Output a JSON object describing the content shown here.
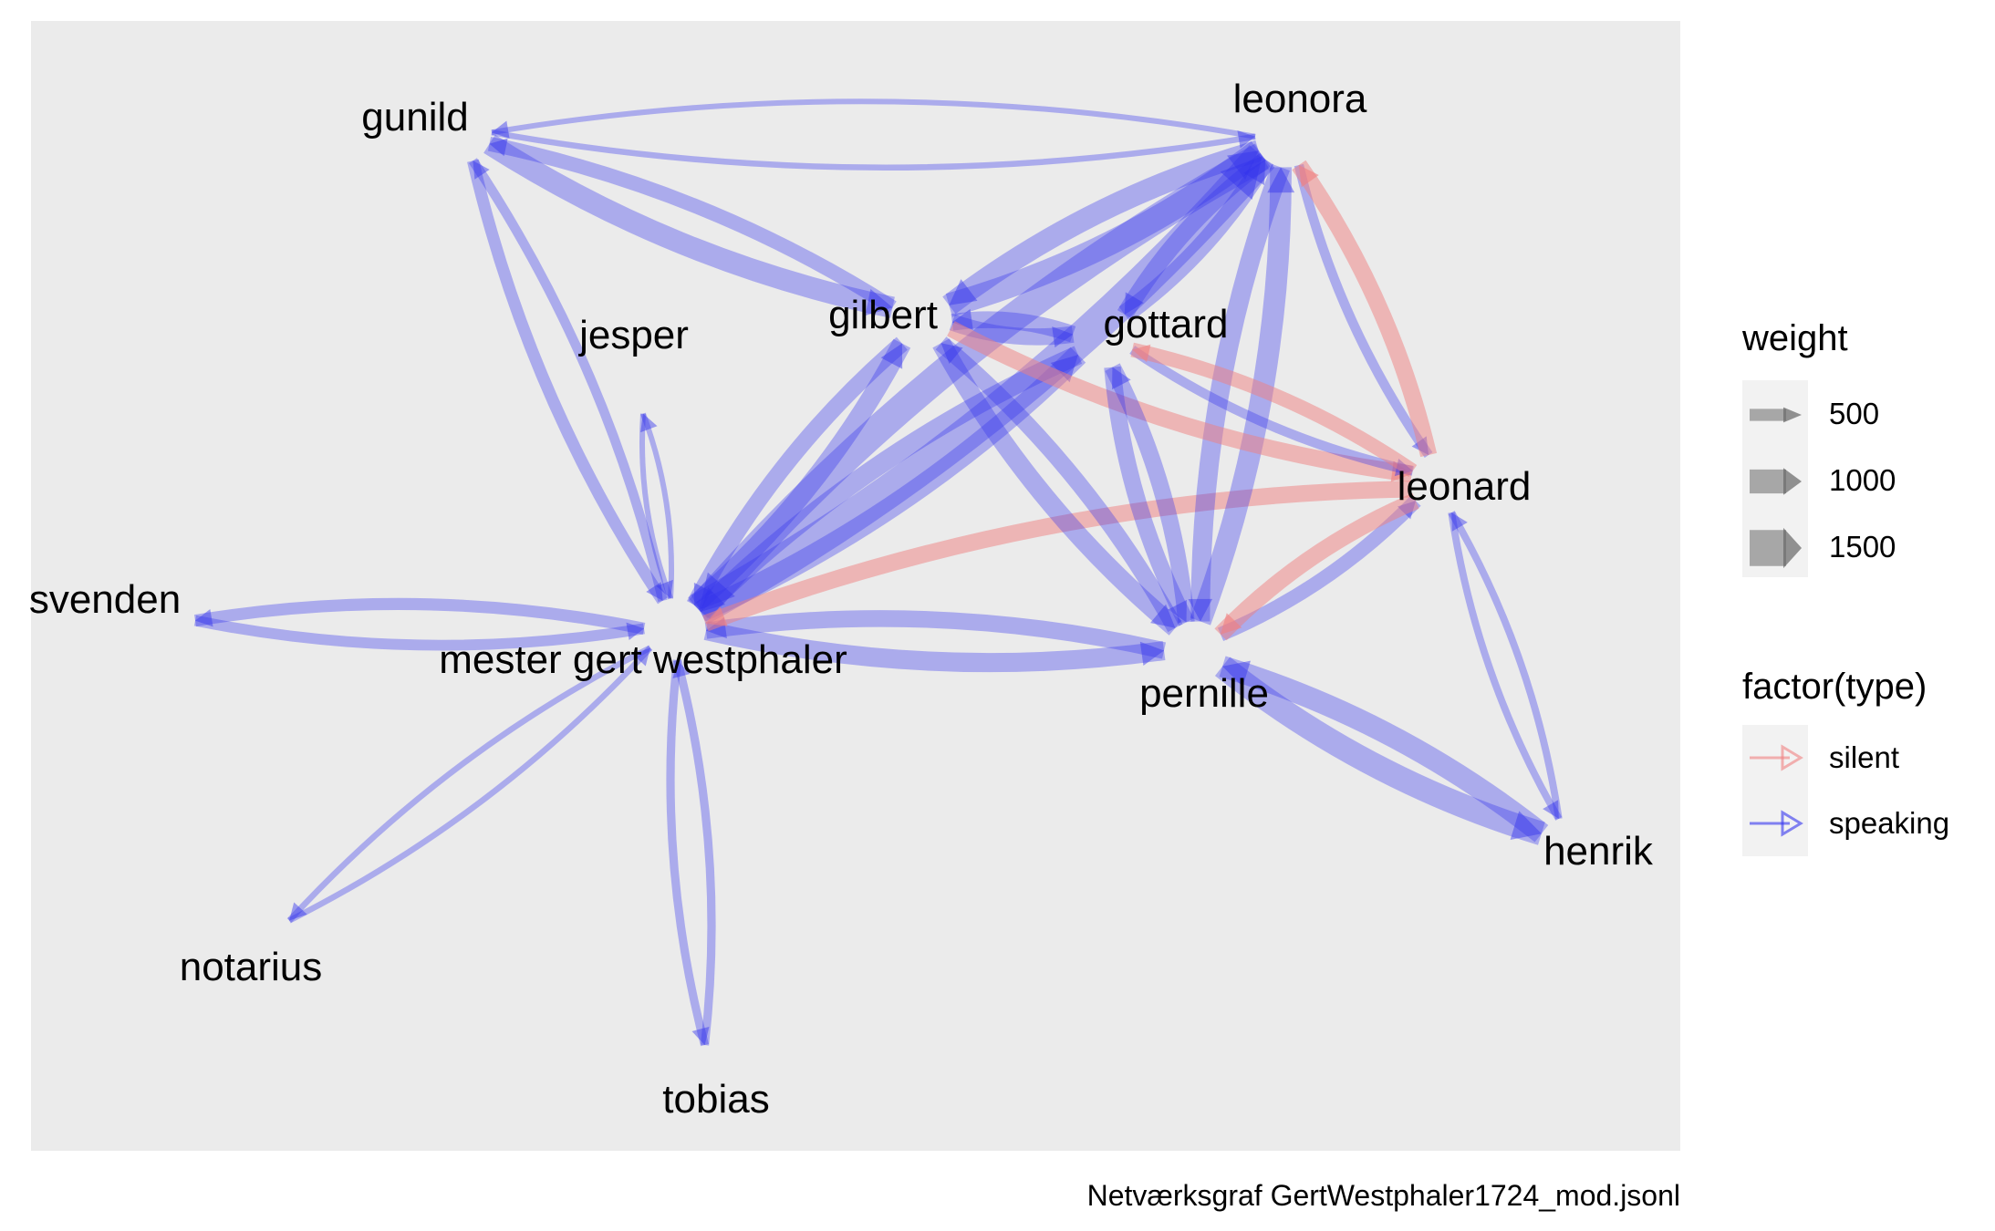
{
  "caption": "Netværksgraf GertWestphaler1724_mod.jsonl",
  "colors": {
    "panel": "#EBEBEB",
    "silent": "#F08080",
    "speaking": "#3333EE",
    "legend_key": "#F2F2F2"
  },
  "legend": {
    "weight_title": "weight",
    "weight_items": [
      {
        "label": "500",
        "value": 500
      },
      {
        "label": "1000",
        "value": 1000
      },
      {
        "label": "1500",
        "value": 1500
      }
    ],
    "type_title": "factor(type)",
    "type_items": [
      {
        "label": "silent",
        "key": "silent"
      },
      {
        "label": "speaking",
        "key": "speaking"
      }
    ]
  },
  "nodes": [
    {
      "id": "leonora",
      "label": "leonora"
    },
    {
      "id": "gunild",
      "label": "gunild"
    },
    {
      "id": "gilbert",
      "label": "gilbert"
    },
    {
      "id": "gottard",
      "label": "gottard"
    },
    {
      "id": "jesper",
      "label": "jesper"
    },
    {
      "id": "leonard",
      "label": "leonard"
    },
    {
      "id": "svenden",
      "label": "svenden"
    },
    {
      "id": "mester_gert",
      "label": "mester gert westphaler"
    },
    {
      "id": "pernille",
      "label": "pernille"
    },
    {
      "id": "henrik",
      "label": "henrik"
    },
    {
      "id": "notarius",
      "label": "notarius"
    },
    {
      "id": "tobias",
      "label": "tobias"
    }
  ],
  "edges": [
    {
      "from": "leonora",
      "to": "gunild",
      "type": "speaking",
      "weight": 200
    },
    {
      "from": "gunild",
      "to": "leonora",
      "type": "speaking",
      "weight": 250
    },
    {
      "from": "gunild",
      "to": "gilbert",
      "type": "speaking",
      "weight": 900
    },
    {
      "from": "gilbert",
      "to": "gunild",
      "type": "speaking",
      "weight": 600
    },
    {
      "from": "gunild",
      "to": "mester_gert",
      "type": "speaking",
      "weight": 500
    },
    {
      "from": "mester_gert",
      "to": "gunild",
      "type": "speaking",
      "weight": 400
    },
    {
      "from": "jesper",
      "to": "mester_gert",
      "type": "speaking",
      "weight": 150
    },
    {
      "from": "mester_gert",
      "to": "jesper",
      "type": "speaking",
      "weight": 150
    },
    {
      "from": "svenden",
      "to": "mester_gert",
      "type": "speaking",
      "weight": 450
    },
    {
      "from": "mester_gert",
      "to": "svenden",
      "type": "speaking",
      "weight": 500
    },
    {
      "from": "notarius",
      "to": "mester_gert",
      "type": "speaking",
      "weight": 250
    },
    {
      "from": "mester_gert",
      "to": "notarius",
      "type": "speaking",
      "weight": 250
    },
    {
      "from": "tobias",
      "to": "mester_gert",
      "type": "speaking",
      "weight": 350
    },
    {
      "from": "mester_gert",
      "to": "tobias",
      "type": "speaking",
      "weight": 350
    },
    {
      "from": "leonora",
      "to": "mester_gert",
      "type": "speaking",
      "weight": 1200
    },
    {
      "from": "mester_gert",
      "to": "leonora",
      "type": "speaking",
      "weight": 1400
    },
    {
      "from": "gilbert",
      "to": "mester_gert",
      "type": "speaking",
      "weight": 700
    },
    {
      "from": "mester_gert",
      "to": "gilbert",
      "type": "speaking",
      "weight": 800
    },
    {
      "from": "gottard",
      "to": "mester_gert",
      "type": "speaking",
      "weight": 800
    },
    {
      "from": "mester_gert",
      "to": "gottard",
      "type": "speaking",
      "weight": 900
    },
    {
      "from": "mester_gert",
      "to": "pernille",
      "type": "speaking",
      "weight": 800
    },
    {
      "from": "pernille",
      "to": "mester_gert",
      "type": "speaking",
      "weight": 700
    },
    {
      "from": "leonard",
      "to": "mester_gert",
      "type": "silent",
      "weight": 700
    },
    {
      "from": "leonora",
      "to": "gilbert",
      "type": "speaking",
      "weight": 900
    },
    {
      "from": "gilbert",
      "to": "leonora",
      "type": "speaking",
      "weight": 1000
    },
    {
      "from": "leonora",
      "to": "gottard",
      "type": "speaking",
      "weight": 700
    },
    {
      "from": "gottard",
      "to": "leonora",
      "type": "speaking",
      "weight": 800
    },
    {
      "from": "leonora",
      "to": "pernille",
      "type": "speaking",
      "weight": 800
    },
    {
      "from": "pernille",
      "to": "leonora",
      "type": "speaking",
      "weight": 900
    },
    {
      "from": "leonora",
      "to": "leonard",
      "type": "speaking",
      "weight": 400
    },
    {
      "from": "leonard",
      "to": "leonora",
      "type": "silent",
      "weight": 700
    },
    {
      "from": "gilbert",
      "to": "gottard",
      "type": "speaking",
      "weight": 700
    },
    {
      "from": "gottard",
      "to": "gilbert",
      "type": "speaking",
      "weight": 700
    },
    {
      "from": "gilbert",
      "to": "leonard",
      "type": "silent",
      "weight": 700
    },
    {
      "from": "gilbert",
      "to": "pernille",
      "type": "speaking",
      "weight": 800
    },
    {
      "from": "pernille",
      "to": "gilbert",
      "type": "speaking",
      "weight": 700
    },
    {
      "from": "gottard",
      "to": "pernille",
      "type": "speaking",
      "weight": 700
    },
    {
      "from": "pernille",
      "to": "gottard",
      "type": "speaking",
      "weight": 700
    },
    {
      "from": "gottard",
      "to": "leonard",
      "type": "speaking",
      "weight": 400
    },
    {
      "from": "leonard",
      "to": "gottard",
      "type": "silent",
      "weight": 600
    },
    {
      "from": "pernille",
      "to": "leonard",
      "type": "speaking",
      "weight": 600
    },
    {
      "from": "leonard",
      "to": "pernille",
      "type": "silent",
      "weight": 700
    },
    {
      "from": "pernille",
      "to": "henrik",
      "type": "speaking",
      "weight": 1000
    },
    {
      "from": "henrik",
      "to": "pernille",
      "type": "speaking",
      "weight": 900
    },
    {
      "from": "leonard",
      "to": "henrik",
      "type": "speaking",
      "weight": 300
    },
    {
      "from": "henrik",
      "to": "leonard",
      "type": "speaking",
      "weight": 300
    }
  ]
}
